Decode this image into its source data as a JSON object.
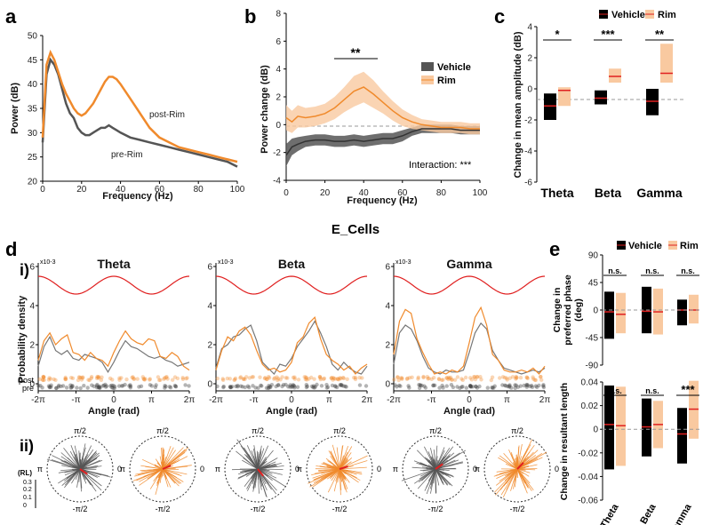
{
  "colors": {
    "vehicle": "#555555",
    "rim": "#f08a2c",
    "rim_fill": "#f9c9a0",
    "red": "#e02020",
    "black": "#000000"
  },
  "panel_labels": {
    "a": "a",
    "b": "b",
    "c": "c",
    "d": "d",
    "e": "e",
    "di": "i)",
    "dii": "ii)"
  },
  "chart_data": [
    {
      "id": "a",
      "type": "line",
      "xlabel": "Frequency (Hz)",
      "ylabel": "Power (dB)",
      "xlim": [
        0,
        100
      ],
      "ylim": [
        20,
        50
      ],
      "xticks": [
        "0",
        "20",
        "40",
        "60",
        "80",
        "100"
      ],
      "yticks": [
        "20",
        "25",
        "30",
        "35",
        "40",
        "45",
        "50"
      ],
      "annotations": [
        "post-Rim",
        "pre-Rim"
      ],
      "series": [
        {
          "name": "pre-Rim",
          "x": [
            0,
            2,
            4,
            6,
            8,
            10,
            12,
            14,
            16,
            18,
            20,
            22,
            24,
            26,
            28,
            30,
            32,
            34,
            36,
            38,
            40,
            45,
            50,
            55,
            60,
            65,
            70,
            75,
            80,
            85,
            90,
            95,
            100
          ],
          "y": [
            28,
            42,
            45,
            44,
            42,
            39,
            36,
            34,
            33,
            31,
            30,
            29.5,
            29.5,
            30,
            30.5,
            31,
            31,
            31.5,
            31,
            30.5,
            30,
            29,
            28.5,
            28,
            27.5,
            27,
            26.5,
            26,
            25.5,
            25,
            24.5,
            24,
            23
          ]
        },
        {
          "name": "post-Rim",
          "x": [
            0,
            2,
            4,
            6,
            8,
            10,
            12,
            14,
            16,
            18,
            20,
            22,
            24,
            26,
            28,
            30,
            32,
            34,
            36,
            38,
            40,
            45,
            50,
            55,
            60,
            65,
            70,
            75,
            80,
            85,
            90,
            95,
            100
          ],
          "y": [
            29,
            44,
            46.5,
            45,
            42.5,
            40,
            38,
            36.5,
            35,
            34,
            33.5,
            34,
            35,
            36,
            37.5,
            39,
            40.5,
            41.5,
            41.5,
            41,
            40,
            37,
            34,
            31,
            29,
            28,
            27,
            26.5,
            26,
            25.5,
            25,
            24.5,
            24
          ]
        }
      ]
    },
    {
      "id": "b",
      "type": "line",
      "xlabel": "Frequency (Hz)",
      "ylabel": "Power change (dB)",
      "xlim": [
        0,
        100
      ],
      "ylim": [
        -4,
        8
      ],
      "xticks": [
        "0",
        "20",
        "40",
        "60",
        "80",
        "100"
      ],
      "yticks": [
        "-4",
        "-2",
        "0",
        "2",
        "4",
        "6",
        "8"
      ],
      "legend": [
        "Vehicle",
        "Rim"
      ],
      "significance": "**",
      "annotation": "Interaction: ***",
      "series": [
        {
          "name": "Vehicle",
          "x": [
            0,
            3,
            6,
            10,
            15,
            20,
            25,
            30,
            35,
            40,
            45,
            50,
            55,
            60,
            65,
            70,
            75,
            80,
            85,
            90,
            95,
            100
          ],
          "y": [
            -2.2,
            -1.6,
            -1.4,
            -1.2,
            -1.1,
            -1.1,
            -1.2,
            -1.2,
            -1.1,
            -1.2,
            -1.1,
            -1.0,
            -1.0,
            -0.8,
            -0.5,
            -0.3,
            -0.3,
            -0.3,
            -0.3,
            -0.4,
            -0.4,
            -0.4
          ],
          "err": [
            0.8,
            0.6,
            0.5,
            0.4,
            0.4,
            0.4,
            0.4,
            0.4,
            0.4,
            0.4,
            0.4,
            0.4,
            0.4,
            0.4,
            0.3,
            0.3,
            0.3,
            0.3,
            0.3,
            0.3,
            0.3,
            0.3
          ]
        },
        {
          "name": "Rim",
          "x": [
            0,
            3,
            6,
            10,
            15,
            20,
            25,
            30,
            35,
            40,
            45,
            50,
            55,
            60,
            65,
            70,
            75,
            80,
            85,
            90,
            95,
            100
          ],
          "y": [
            0.5,
            0.2,
            0.6,
            0.5,
            0.6,
            0.8,
            1.2,
            1.8,
            2.4,
            2.7,
            2.2,
            1.6,
            1.0,
            0.5,
            0.2,
            0.0,
            -0.1,
            -0.2,
            -0.2,
            -0.2,
            -0.3,
            -0.3
          ],
          "err": [
            0.9,
            0.8,
            0.8,
            0.7,
            0.7,
            0.7,
            0.8,
            0.9,
            1.1,
            1.1,
            1.0,
            0.8,
            0.7,
            0.6,
            0.5,
            0.4,
            0.4,
            0.4,
            0.4,
            0.4,
            0.4,
            0.4
          ]
        }
      ]
    },
    {
      "id": "c",
      "type": "bar",
      "ylabel": "Change in mean amplitude (dB)",
      "categories": [
        "Theta",
        "Beta",
        "Gamma"
      ],
      "ylim": [
        -6,
        4
      ],
      "yticks": [
        "-6",
        "-4",
        "-2",
        "0",
        "2",
        "4"
      ],
      "legend": [
        "Vehicle",
        "Rim"
      ],
      "significance": [
        "*",
        "***",
        "**"
      ],
      "series": [
        {
          "name": "Vehicle",
          "mean": [
            -1.1,
            -0.6,
            -0.8
          ],
          "low": [
            -2.0,
            -1.0,
            -1.7
          ],
          "high": [
            -0.3,
            -0.1,
            0.0
          ]
        },
        {
          "name": "Rim",
          "mean": [
            -0.1,
            0.8,
            1.0
          ],
          "low": [
            -1.1,
            0.4,
            0.4
          ],
          "high": [
            0.1,
            1.3,
            2.9
          ]
        }
      ]
    },
    {
      "id": "d",
      "type": "line",
      "title": "E_Cells",
      "xlabel": "Angle (rad)",
      "ylabel": "Probability density",
      "xticks": [
        "-2π",
        "-π",
        "0",
        "π",
        "2π"
      ],
      "yticks": [
        "0",
        "2",
        "4",
        "6"
      ],
      "exponent": "x10-3",
      "raster_labels": [
        "post",
        "pre"
      ],
      "ylim": [
        0,
        6
      ],
      "bands": [
        {
          "name": "Theta",
          "vehicle": [
            0.9,
            1.9,
            2.4,
            1.7,
            1.5,
            1.7,
            1.3,
            1.2,
            1.5,
            1.4,
            1.3,
            1.1,
            0.6,
            1.1,
            1.7,
            2.2,
            1.9,
            1.8,
            1.6,
            1.4,
            1.3,
            1.4,
            1.2,
            1.1,
            0.9,
            1.0,
            1.1
          ],
          "rim": [
            1.2,
            2.2,
            2.6,
            2.0,
            2.3,
            2.5,
            1.6,
            1.5,
            1.2,
            1.6,
            1.3,
            1.2,
            0.9,
            1.6,
            2.2,
            2.7,
            2.3,
            2.1,
            2.0,
            2.3,
            2.2,
            1.4,
            1.3,
            1.6,
            1.4,
            0.9,
            0.7
          ]
        },
        {
          "name": "Beta",
          "vehicle": [
            0.8,
            1.8,
            2.0,
            2.4,
            2.5,
            2.8,
            3.0,
            2.2,
            1.1,
            0.8,
            0.5,
            1.0,
            0.9,
            1.3,
            1.9,
            2.3,
            2.7,
            3.2,
            2.6,
            1.9,
            1.0,
            0.7,
            1.1,
            0.8,
            0.6,
            0.5,
            0.9
          ],
          "rim": [
            0.7,
            1.7,
            2.4,
            2.2,
            2.7,
            2.9,
            2.5,
            1.7,
            1.0,
            0.7,
            0.8,
            0.6,
            0.7,
            1.1,
            2.1,
            2.4,
            3.1,
            3.4,
            2.3,
            1.5,
            1.2,
            1.0,
            0.7,
            0.9,
            0.5,
            0.8,
            1.0
          ]
        },
        {
          "name": "Gamma",
          "vehicle": [
            1.0,
            2.6,
            3.0,
            2.8,
            2.2,
            1.4,
            0.8,
            0.6,
            0.5,
            0.7,
            0.6,
            0.6,
            0.7,
            1.6,
            2.6,
            3.1,
            2.8,
            1.7,
            1.2,
            0.8,
            0.7,
            0.6,
            0.5,
            0.6,
            0.7,
            0.6,
            0.8
          ],
          "rim": [
            1.5,
            3.2,
            3.8,
            3.6,
            2.3,
            1.6,
            1.0,
            0.5,
            0.6,
            0.5,
            0.7,
            0.6,
            0.9,
            2.1,
            3.4,
            3.9,
            3.0,
            1.5,
            1.2,
            0.7,
            0.6,
            0.6,
            0.7,
            0.6,
            0.8,
            0.5,
            0.9
          ]
        }
      ]
    },
    {
      "id": "dii",
      "type": "scatter",
      "subtype": "polar",
      "direction_labels": [
        "π/2",
        "-π/2",
        "π",
        "0"
      ],
      "rl_label": "(RL)",
      "rl_ticks": [
        "0.3",
        "0.2",
        "0.1",
        "0"
      ],
      "plots": [
        {
          "band": "Theta",
          "group": "Vehicle"
        },
        {
          "band": "Theta",
          "group": "Rim"
        },
        {
          "band": "Beta",
          "group": "Vehicle"
        },
        {
          "band": "Beta",
          "group": "Rim"
        },
        {
          "band": "Gamma",
          "group": "Vehicle"
        },
        {
          "band": "Gamma",
          "group": "Rim"
        }
      ]
    },
    {
      "id": "e1",
      "type": "bar",
      "ylabel": "Change in preferred phase (deg)",
      "categories": [
        "Theta",
        "Beta",
        "Gamma"
      ],
      "ylim": [
        -90,
        90
      ],
      "yticks": [
        "-90",
        "-45",
        "0",
        "45",
        "90"
      ],
      "legend": [
        "Vehicle",
        "Rim"
      ],
      "significance": [
        "n.s.",
        "n.s.",
        "n.s."
      ],
      "series": [
        {
          "name": "Vehicle",
          "mean": [
            -3,
            -2,
            0
          ],
          "low": [
            -47,
            -38,
            -25
          ],
          "high": [
            30,
            38,
            17
          ]
        },
        {
          "name": "Rim",
          "mean": [
            -7,
            -3,
            0
          ],
          "low": [
            -38,
            -40,
            -22
          ],
          "high": [
            28,
            35,
            25
          ]
        }
      ]
    },
    {
      "id": "e2",
      "type": "bar",
      "ylabel": "Change in resultant length",
      "categories": [
        "Theta",
        "Beta",
        "Gamma"
      ],
      "ylim": [
        -0.06,
        0.04
      ],
      "yticks": [
        "-0.06",
        "-0.04",
        "-0.02",
        "0",
        "0.02",
        "0.04"
      ],
      "significance": [
        "n.s.",
        "n.s.",
        "***"
      ],
      "series": [
        {
          "name": "Vehicle",
          "mean": [
            0.004,
            0.002,
            -0.004
          ],
          "low": [
            -0.034,
            -0.023,
            -0.029
          ],
          "high": [
            0.037,
            0.026,
            0.018
          ]
        },
        {
          "name": "Rim",
          "mean": [
            0.003,
            0.004,
            0.017
          ],
          "low": [
            -0.031,
            -0.016,
            -0.008
          ],
          "high": [
            0.036,
            0.024,
            0.041
          ]
        }
      ]
    }
  ]
}
